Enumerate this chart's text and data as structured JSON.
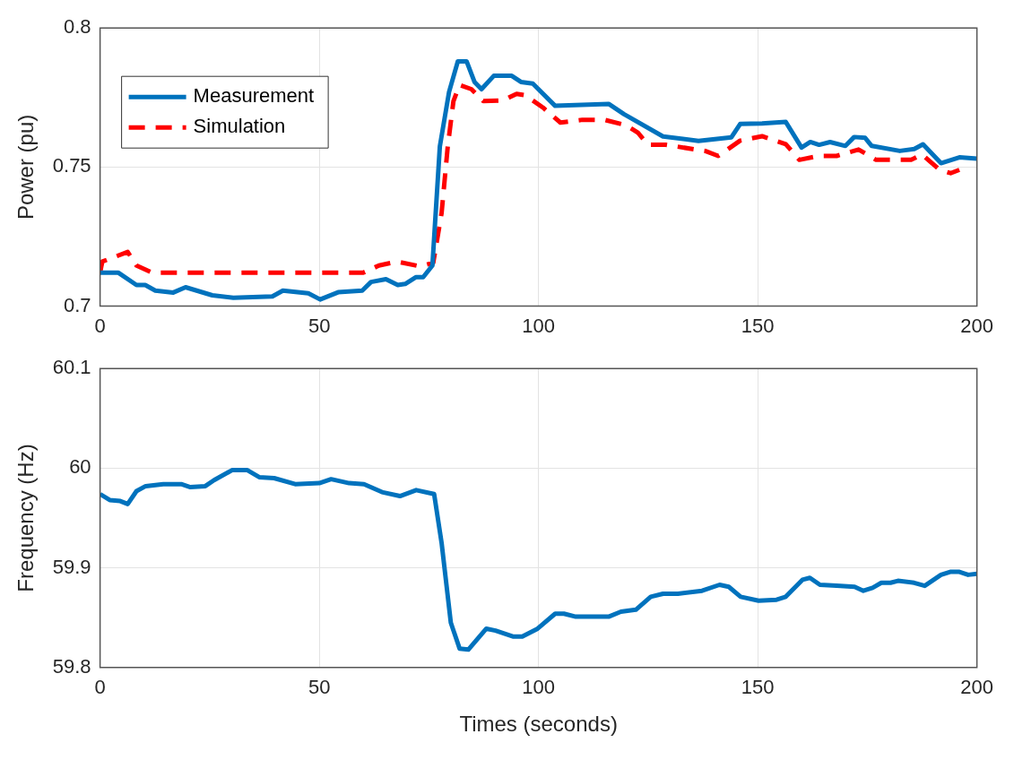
{
  "chart_data": [
    {
      "type": "line",
      "ylabel": "Power (pu)",
      "xlim": [
        0,
        200
      ],
      "xticks": [
        0,
        50,
        100,
        150,
        200
      ],
      "ylim": [
        0.7,
        0.8
      ],
      "yticks": [
        0.7,
        0.75,
        0.8
      ],
      "grid": true,
      "legend": "top left",
      "marker": "none",
      "series": [
        {
          "name": "Measurement",
          "color": "#0072bd",
          "line_style": "solid",
          "x": [
            0,
            4.2,
            8.3,
            10.3,
            12.6,
            16.7,
            19.5,
            25.6,
            30.4,
            39.3,
            41.7,
            47.5,
            50.2,
            54.3,
            59.8,
            61.8,
            65.2,
            67.9,
            69.6,
            72,
            73.7,
            75.8,
            77.5,
            79.6,
            81.6,
            83.6,
            85.4,
            87,
            89.8,
            93.9,
            96,
            98.7,
            103.8,
            116,
            119.5,
            128.4,
            136.5,
            144,
            146,
            151,
            156.4,
            160,
            162,
            164,
            166.5,
            170,
            172,
            174.5,
            176,
            182.4,
            185.7,
            187.7,
            191.8,
            196,
            200
          ],
          "values": [
            0.712,
            0.712,
            0.7076,
            0.7076,
            0.7056,
            0.7049,
            0.7068,
            0.7039,
            0.703,
            0.7035,
            0.7056,
            0.7046,
            0.7024,
            0.705,
            0.7056,
            0.7087,
            0.7097,
            0.7076,
            0.708,
            0.7104,
            0.7104,
            0.7146,
            0.7574,
            0.777,
            0.788,
            0.788,
            0.7806,
            0.778,
            0.7828,
            0.7828,
            0.7806,
            0.78,
            0.772,
            0.7727,
            0.769,
            0.761,
            0.7594,
            0.7607,
            0.7655,
            0.7657,
            0.7662,
            0.757,
            0.759,
            0.758,
            0.759,
            0.7576,
            0.7608,
            0.7605,
            0.7576,
            0.7558,
            0.7565,
            0.7582,
            0.7514,
            0.7535,
            0.753
          ]
        },
        {
          "name": "Simulation",
          "color": "#ff0000",
          "line_style": "dashed",
          "x": [
            0,
            0.5,
            6.3,
            8.3,
            11.9,
            60,
            63.6,
            67.7,
            73,
            76,
            77.9,
            79.3,
            80.6,
            82,
            84.7,
            87.4,
            92,
            95,
            97,
            101,
            105,
            110,
            115,
            120,
            122.7,
            125,
            129,
            138,
            141,
            146,
            151,
            156.4,
            159.5,
            164,
            168,
            173,
            177,
            182,
            185,
            187.5,
            191.5,
            194,
            196
          ],
          "values": [
            0.712,
            0.716,
            0.7195,
            0.7146,
            0.712,
            0.712,
            0.7146,
            0.716,
            0.7143,
            0.7156,
            0.7335,
            0.7574,
            0.7737,
            0.7795,
            0.778,
            0.7737,
            0.774,
            0.7763,
            0.7758,
            0.7714,
            0.766,
            0.767,
            0.767,
            0.765,
            0.7623,
            0.758,
            0.758,
            0.7558,
            0.754,
            0.7595,
            0.7611,
            0.7582,
            0.7526,
            0.754,
            0.754,
            0.7563,
            0.7526,
            0.7526,
            0.7526,
            0.7545,
            0.749,
            0.7478,
            0.749
          ]
        }
      ]
    },
    {
      "type": "line",
      "xlabel": "Times (seconds)",
      "ylabel": "Frequency (Hz)",
      "xlim": [
        0,
        200
      ],
      "xticks": [
        0,
        50,
        100,
        150,
        200
      ],
      "ylim": [
        59.8,
        60.1
      ],
      "yticks": [
        59.8,
        59.9,
        60,
        60.1
      ],
      "grid": true,
      "marker": "none",
      "series": [
        {
          "color": "#0072bd",
          "line_style": "solid",
          "x": [
            0,
            2.2,
            4.6,
            6.3,
            8.3,
            10.4,
            14.4,
            18.5,
            20.6,
            24,
            26,
            30.1,
            33.6,
            36.3,
            39.7,
            44.5,
            50,
            52.7,
            56.8,
            60.2,
            64.3,
            68.4,
            72.1,
            76.2,
            77.9,
            80,
            82,
            84,
            88.1,
            90.2,
            94.3,
            96.3,
            99.8,
            103.8,
            105.8,
            108.5,
            112.6,
            116,
            118.8,
            122.2,
            125.6,
            128.4,
            131.8,
            137.3,
            141.3,
            143.4,
            146.1,
            150.2,
            154.3,
            156.4,
            160.2,
            161.9,
            164.2,
            168,
            172.1,
            174.1,
            176.2,
            178.2,
            180.3,
            182,
            185.7,
            188.1,
            191.8,
            193.9,
            196,
            198,
            200
          ],
          "values": [
            59.974,
            59.968,
            59.967,
            59.964,
            59.977,
            59.982,
            59.984,
            59.984,
            59.981,
            59.982,
            59.988,
            59.998,
            59.998,
            59.991,
            59.99,
            59.984,
            59.985,
            59.989,
            59.985,
            59.984,
            59.976,
            59.972,
            59.978,
            59.974,
            59.925,
            59.845,
            59.819,
            59.818,
            59.839,
            59.837,
            59.831,
            59.831,
            59.839,
            59.854,
            59.854,
            59.851,
            59.851,
            59.851,
            59.856,
            59.858,
            59.871,
            59.874,
            59.874,
            59.877,
            59.883,
            59.881,
            59.871,
            59.867,
            59.868,
            59.871,
            59.888,
            59.89,
            59.883,
            59.882,
            59.881,
            59.877,
            59.88,
            59.885,
            59.885,
            59.887,
            59.885,
            59.882,
            59.893,
            59.896,
            59.896,
            59.893,
            59.894
          ]
        }
      ]
    }
  ]
}
